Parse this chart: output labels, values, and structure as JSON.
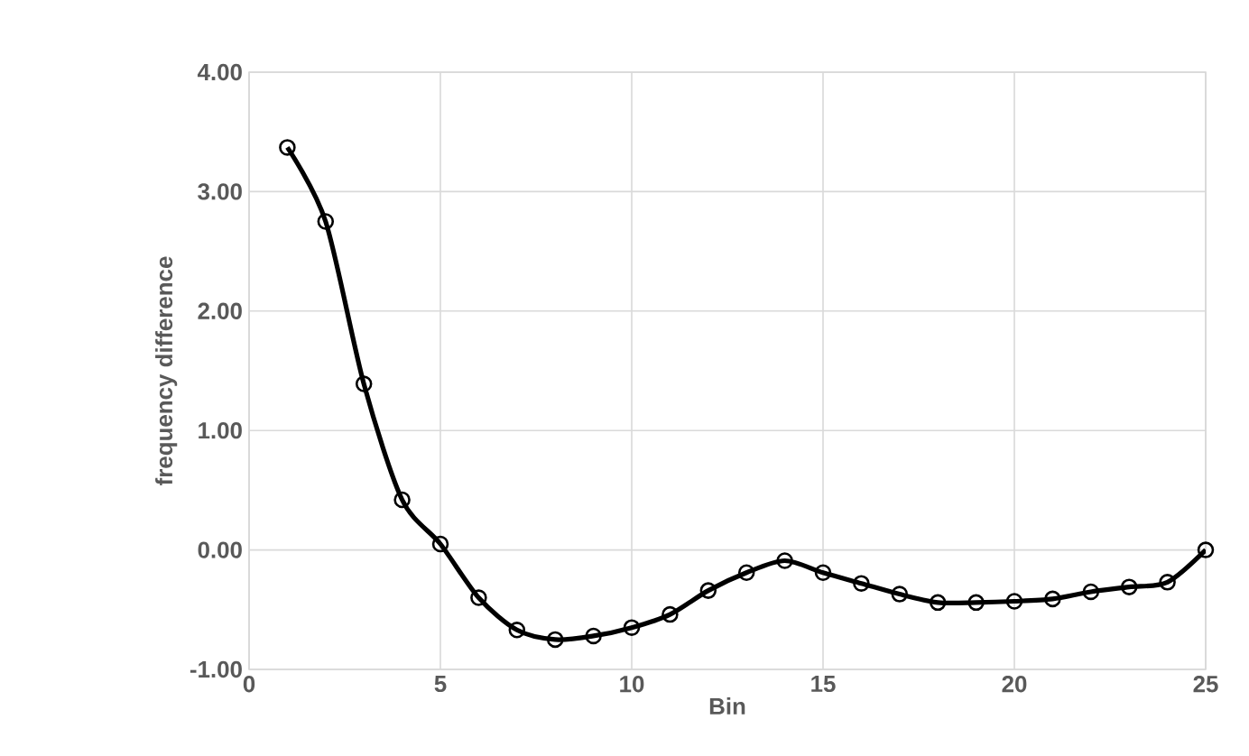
{
  "chart_data": {
    "type": "line",
    "xlabel": "Bin",
    "ylabel": "frequency difference",
    "x": [
      1,
      2,
      3,
      4,
      5,
      6,
      7,
      8,
      9,
      10,
      11,
      12,
      13,
      14,
      15,
      16,
      17,
      18,
      19,
      20,
      21,
      22,
      23,
      24,
      25
    ],
    "series": [
      {
        "color": "#000000",
        "values": [
          3.37,
          2.75,
          1.39,
          0.42,
          0.05,
          -0.4,
          -0.67,
          -0.75,
          -0.72,
          -0.65,
          -0.54,
          -0.34,
          -0.19,
          -0.09,
          -0.19,
          -0.28,
          -0.37,
          -0.44,
          -0.44,
          -0.43,
          -0.41,
          -0.35,
          -0.31,
          -0.27,
          0.0
        ]
      }
    ],
    "xlim": [
      0,
      25
    ],
    "ylim": [
      -1,
      4
    ],
    "xticks": [
      0,
      5,
      10,
      15,
      20,
      25
    ],
    "yticks": [
      {
        "value": -1,
        "label": "-1.00"
      },
      {
        "value": 0,
        "label": "0.00"
      },
      {
        "value": 1,
        "label": "1.00"
      },
      {
        "value": 2,
        "label": "2.00"
      },
      {
        "value": 3,
        "label": "3.00"
      },
      {
        "value": 4,
        "label": "4.00"
      }
    ],
    "grid": true,
    "marker": "circle",
    "line_style": "solid"
  }
}
